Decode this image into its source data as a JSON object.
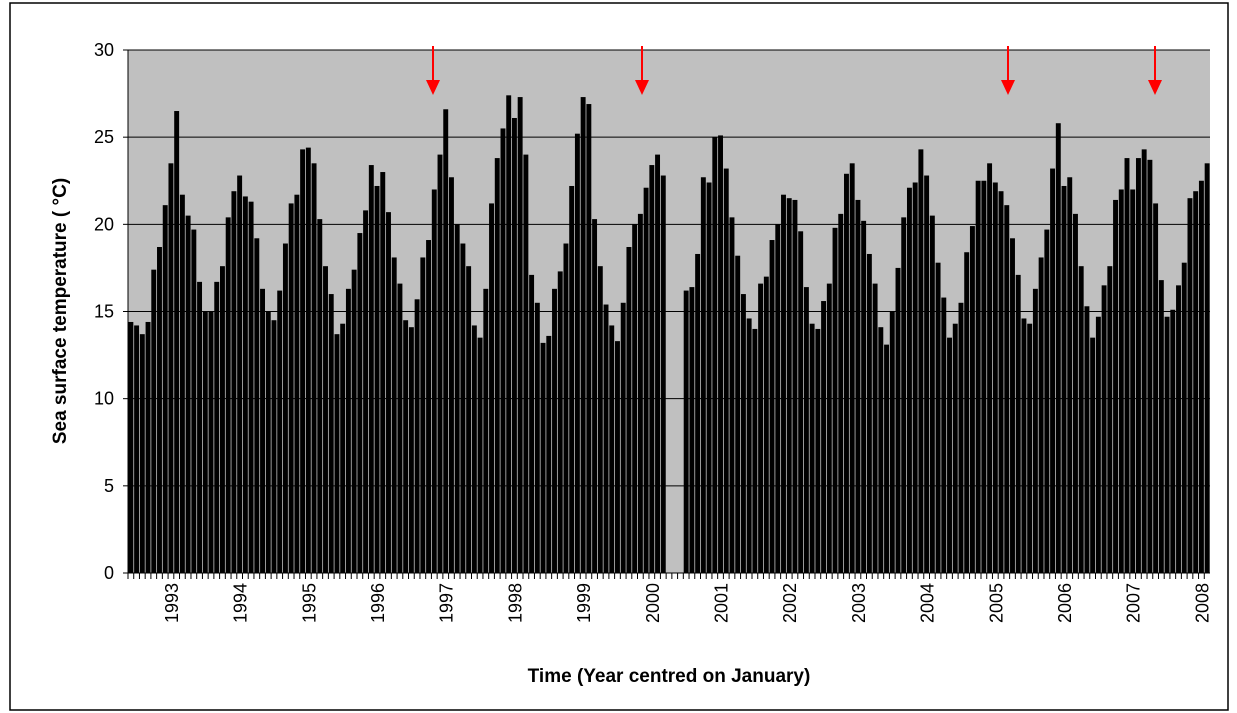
{
  "chart_data": {
    "type": "bar",
    "x_label": "Time (Year centred on January)",
    "y_label": "Sea surface temperature ( °C)",
    "categories": [
      null,
      null,
      null,
      null,
      null,
      null,
      null,
      "1993",
      null,
      null,
      null,
      null,
      null,
      null,
      null,
      null,
      null,
      null,
      null,
      "1994",
      null,
      null,
      null,
      null,
      null,
      null,
      null,
      null,
      null,
      null,
      null,
      "1995",
      null,
      null,
      null,
      null,
      null,
      null,
      null,
      null,
      null,
      null,
      null,
      "1996",
      null,
      null,
      null,
      null,
      null,
      null,
      null,
      null,
      null,
      null,
      null,
      "1997",
      null,
      null,
      null,
      null,
      null,
      null,
      null,
      null,
      null,
      null,
      null,
      "1998",
      null,
      null,
      null,
      null,
      null,
      null,
      null,
      null,
      null,
      null,
      null,
      "1999",
      null,
      null,
      null,
      null,
      null,
      null,
      null,
      null,
      null,
      null,
      null,
      "2000",
      null,
      null,
      null,
      null,
      null,
      null,
      null,
      null,
      null,
      null,
      null,
      "2001",
      null,
      null,
      null,
      null,
      null,
      null,
      null,
      null,
      null,
      null,
      null,
      "2002",
      null,
      null,
      null,
      null,
      null,
      null,
      null,
      null,
      null,
      null,
      null,
      "2003",
      null,
      null,
      null,
      null,
      null,
      null,
      null,
      null,
      null,
      null,
      null,
      "2004",
      null,
      null,
      null,
      null,
      null,
      null,
      null,
      null,
      null,
      null,
      null,
      "2005",
      null,
      null,
      null,
      null,
      null,
      null,
      null,
      null,
      null,
      null,
      null,
      "2006",
      null,
      null,
      null,
      null,
      null,
      null,
      null,
      null,
      null,
      null,
      null,
      "2007",
      null,
      null,
      null,
      null,
      null,
      null,
      null,
      null,
      null,
      null,
      null,
      "2008",
      null
    ],
    "values": [
      14.4,
      14.2,
      13.7,
      14.4,
      17.4,
      18.7,
      21.1,
      23.5,
      26.5,
      21.7,
      20.5,
      19.7,
      16.7,
      15.0,
      15.0,
      16.7,
      17.6,
      20.4,
      21.9,
      22.8,
      21.6,
      21.3,
      19.2,
      16.3,
      15.0,
      14.5,
      16.2,
      18.9,
      21.2,
      21.7,
      24.3,
      24.4,
      23.5,
      20.3,
      17.6,
      16.0,
      13.7,
      14.3,
      16.3,
      17.4,
      19.5,
      20.8,
      23.4,
      22.2,
      23.0,
      20.7,
      18.1,
      16.6,
      14.5,
      14.1,
      15.7,
      18.1,
      19.1,
      22.0,
      24.0,
      26.6,
      22.7,
      20.0,
      18.9,
      17.6,
      14.2,
      13.5,
      16.3,
      21.2,
      23.8,
      25.5,
      27.4,
      26.1,
      27.3,
      24.0,
      17.1,
      15.5,
      13.2,
      13.6,
      16.3,
      17.3,
      18.9,
      22.2,
      25.2,
      27.3,
      26.9,
      20.3,
      17.6,
      15.4,
      14.2,
      13.3,
      15.5,
      18.7,
      20.0,
      20.6,
      22.1,
      23.4,
      24.0,
      22.8,
      null,
      null,
      null,
      16.2,
      16.4,
      18.3,
      22.7,
      22.4,
      25.0,
      25.1,
      23.2,
      20.4,
      18.2,
      16.0,
      14.6,
      14.0,
      16.6,
      17.0,
      19.1,
      20.0,
      21.7,
      21.5,
      21.4,
      19.6,
      16.4,
      14.3,
      14.0,
      15.6,
      16.6,
      19.8,
      20.6,
      22.9,
      23.5,
      21.4,
      20.2,
      18.3,
      16.6,
      14.1,
      13.1,
      15.0,
      17.5,
      20.4,
      22.1,
      22.4,
      24.3,
      22.8,
      20.5,
      17.8,
      15.8,
      13.5,
      14.3,
      15.5,
      18.4,
      19.9,
      22.5,
      22.5,
      23.5,
      22.4,
      21.9,
      21.1,
      19.2,
      17.1,
      14.6,
      14.3,
      16.3,
      18.1,
      19.7,
      23.2,
      25.8,
      22.2,
      22.7,
      20.6,
      17.6,
      15.3,
      13.5,
      14.7,
      16.5,
      17.6,
      21.4,
      22.0,
      23.8,
      22.0,
      23.8,
      24.3,
      23.7,
      21.2,
      16.8,
      14.7,
      15.1,
      16.5,
      17.8,
      21.5,
      21.9,
      22.5,
      23.5
    ],
    "color": "#000000",
    "plot_background": "#c0c0c0",
    "ylim": [
      0,
      30
    ],
    "yticks": [
      0,
      5,
      10,
      15,
      20,
      25,
      30
    ],
    "grid": true
  }
}
